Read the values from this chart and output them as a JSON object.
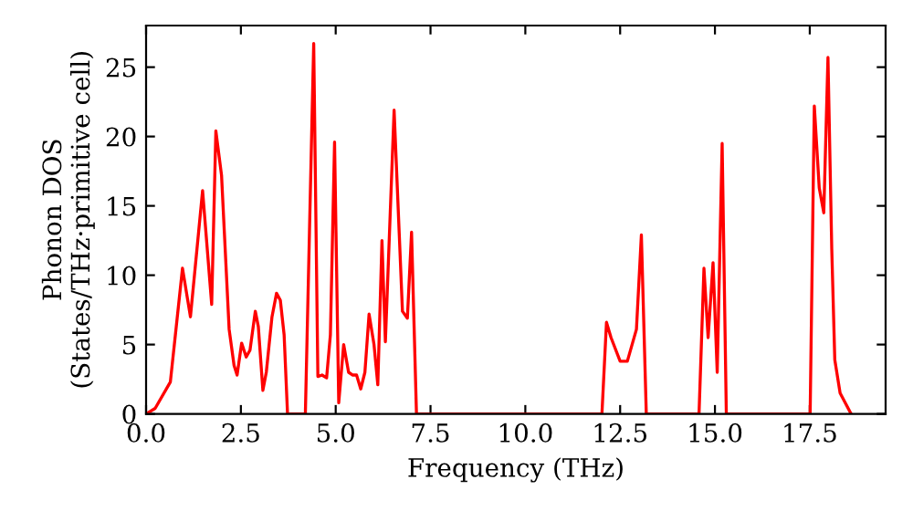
{
  "chart_data": {
    "type": "line",
    "xlabel": "Frequency (THz)",
    "ylabel": "Phonon DOS\n(States/THz·primitive cell)",
    "xlim": [
      0,
      19.5
    ],
    "ylim": [
      0,
      28
    ],
    "xticks": [
      {
        "value": 0,
        "label": "0.0"
      },
      {
        "value": 2.5,
        "label": "2.5"
      },
      {
        "value": 5,
        "label": "5.0"
      },
      {
        "value": 7.5,
        "label": "7.5"
      },
      {
        "value": 10,
        "label": "10.0"
      },
      {
        "value": 12.5,
        "label": "12.5"
      },
      {
        "value": 15,
        "label": "15.0"
      },
      {
        "value": 17.5,
        "label": "17.5"
      }
    ],
    "yticks": [
      0,
      5,
      10,
      15,
      20,
      25
    ],
    "grid": false,
    "marker": "none",
    "line_style": "solid",
    "series": [
      {
        "color": "#ff0000",
        "x": [
          0,
          0.24,
          0.64,
          0.96,
          1.17,
          1.49,
          1.73,
          1.84,
          1.99,
          2.19,
          2.32,
          2.4,
          2.52,
          2.64,
          2.74,
          2.88,
          2.96,
          3.08,
          3.17,
          3.32,
          3.44,
          3.54,
          3.64,
          3.73,
          4.2,
          4.42,
          4.53,
          4.64,
          4.76,
          4.86,
          4.97,
          5.08,
          5.21,
          5.34,
          5.45,
          5.55,
          5.66,
          5.77,
          5.88,
          6.01,
          6.11,
          6.22,
          6.31,
          6.54,
          6.76,
          6.89,
          7.0,
          7.13,
          12.02,
          12.14,
          12.26,
          12.5,
          12.69,
          12.93,
          13.06,
          13.19,
          14.58,
          14.71,
          14.82,
          14.95,
          15.06,
          15.19,
          15.3,
          17.51,
          17.62,
          17.75,
          17.87,
          17.98,
          18.08,
          18.16,
          18.3,
          18.59
        ],
        "values": [
          0,
          0.4,
          2.3,
          10.5,
          7.0,
          16.1,
          7.9,
          20.4,
          17.2,
          6.1,
          3.5,
          2.8,
          5.1,
          4.1,
          4.6,
          7.4,
          6.3,
          1.7,
          3.0,
          7.0,
          8.7,
          8.2,
          5.7,
          0,
          0,
          26.7,
          2.7,
          2.8,
          2.6,
          5.7,
          19.6,
          0.8,
          5.0,
          3.0,
          2.8,
          2.8,
          1.8,
          3.0,
          7.2,
          5.0,
          2.1,
          12.5,
          5.2,
          21.9,
          7.4,
          6.9,
          13.1,
          0,
          0,
          6.6,
          5.5,
          3.8,
          3.8,
          6.1,
          12.9,
          0,
          0,
          10.5,
          5.5,
          10.9,
          3.0,
          19.5,
          0,
          0,
          22.2,
          16.3,
          14.5,
          25.7,
          11.9,
          3.9,
          1.5,
          0
        ]
      }
    ]
  }
}
